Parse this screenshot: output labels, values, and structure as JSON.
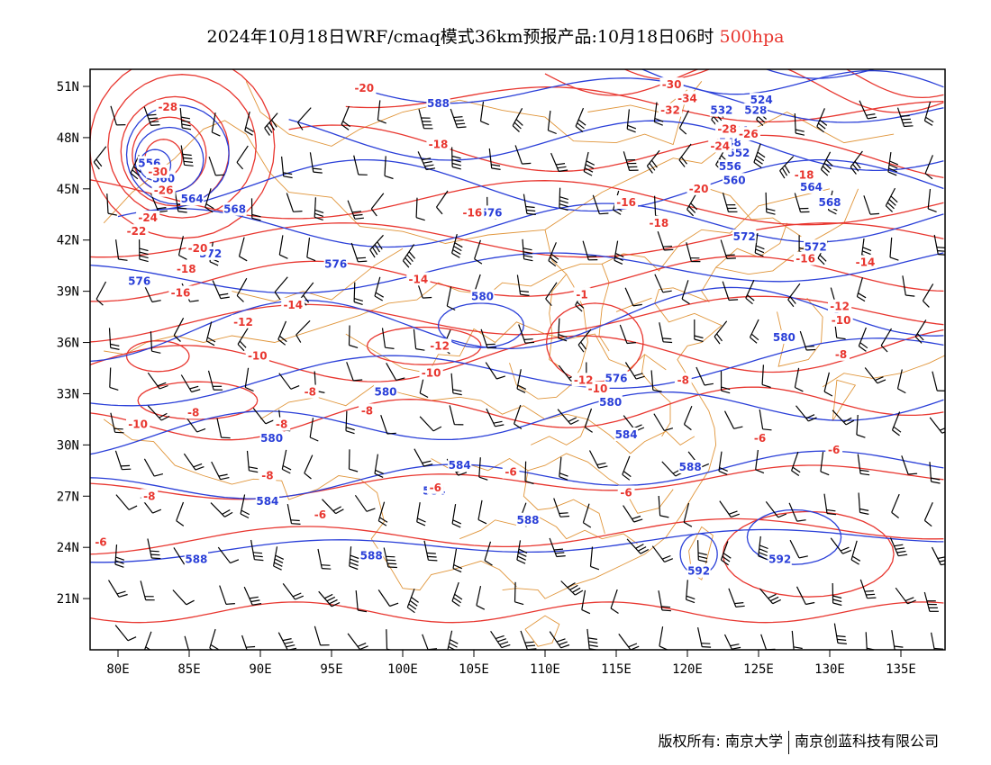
{
  "title": {
    "main": "2024年10月18日WRF/cmaq模式36km预报产品:10月18日06时",
    "level": "500hpa"
  },
  "colors": {
    "height_contour": "#2a3fd8",
    "temperature_contour": "#e8362f",
    "coastline_border": "#e0953a",
    "wind_barb": "#000000",
    "level_highlight": "#e8362f"
  },
  "axes": {
    "x_ticks": [
      "80E",
      "85E",
      "90E",
      "95E",
      "100E",
      "105E",
      "110E",
      "115E",
      "120E",
      "125E",
      "130E",
      "135E"
    ],
    "y_ticks": [
      "51N",
      "48N",
      "45N",
      "42N",
      "39N",
      "36N",
      "33N",
      "30N",
      "27N",
      "24N",
      "21N"
    ]
  },
  "contour_labels": {
    "height": [
      {
        "text": "588",
        "lon": 102.5,
        "lat": 50.0
      },
      {
        "text": "556",
        "lon": 82.2,
        "lat": 46.5
      },
      {
        "text": "560",
        "lon": 83.2,
        "lat": 45.6
      },
      {
        "text": "564",
        "lon": 85.2,
        "lat": 44.4
      },
      {
        "text": "568",
        "lon": 88.2,
        "lat": 43.8
      },
      {
        "text": "572",
        "lon": 86.5,
        "lat": 41.2
      },
      {
        "text": "576",
        "lon": 95.3,
        "lat": 40.6
      },
      {
        "text": "576",
        "lon": 81.5,
        "lat": 39.6
      },
      {
        "text": "576",
        "lon": 106.2,
        "lat": 43.6
      },
      {
        "text": "580",
        "lon": 105.6,
        "lat": 38.7
      },
      {
        "text": "580",
        "lon": 98.8,
        "lat": 33.1
      },
      {
        "text": "580",
        "lon": 90.8,
        "lat": 30.4
      },
      {
        "text": "576",
        "lon": 115.0,
        "lat": 33.9
      },
      {
        "text": "580",
        "lon": 114.6,
        "lat": 32.5
      },
      {
        "text": "584",
        "lon": 115.7,
        "lat": 30.6
      },
      {
        "text": "584",
        "lon": 104.0,
        "lat": 28.8
      },
      {
        "text": "584",
        "lon": 102.2,
        "lat": 27.3
      },
      {
        "text": "584",
        "lon": 90.5,
        "lat": 26.7
      },
      {
        "text": "588",
        "lon": 108.8,
        "lat": 25.6
      },
      {
        "text": "588",
        "lon": 97.8,
        "lat": 23.5
      },
      {
        "text": "588",
        "lon": 85.5,
        "lat": 23.3
      },
      {
        "text": "588",
        "lon": 120.2,
        "lat": 28.7
      },
      {
        "text": "592",
        "lon": 120.8,
        "lat": 22.6
      },
      {
        "text": "592",
        "lon": 126.5,
        "lat": 23.3
      },
      {
        "text": "580",
        "lon": 126.8,
        "lat": 36.3
      },
      {
        "text": "572",
        "lon": 124.0,
        "lat": 42.2
      },
      {
        "text": "572",
        "lon": 129.0,
        "lat": 41.6
      },
      {
        "text": "568",
        "lon": 130.0,
        "lat": 44.2
      },
      {
        "text": "564",
        "lon": 128.7,
        "lat": 45.1
      },
      {
        "text": "560",
        "lon": 123.3,
        "lat": 45.5
      },
      {
        "text": "556",
        "lon": 123.0,
        "lat": 46.3
      },
      {
        "text": "552",
        "lon": 123.6,
        "lat": 47.1
      },
      {
        "text": "548",
        "lon": 123.0,
        "lat": 47.7
      },
      {
        "text": "544",
        "lon": 123.5,
        "lat": 48.4
      },
      {
        "text": "532",
        "lon": 122.4,
        "lat": 49.6
      },
      {
        "text": "528",
        "lon": 124.8,
        "lat": 49.6
      },
      {
        "text": "524",
        "lon": 125.2,
        "lat": 50.2
      }
    ],
    "temperature": [
      {
        "text": "-28",
        "lon": 83.5,
        "lat": 49.8
      },
      {
        "text": "-30",
        "lon": 82.8,
        "lat": 46.0
      },
      {
        "text": "-26",
        "lon": 83.2,
        "lat": 44.9
      },
      {
        "text": "-24",
        "lon": 82.1,
        "lat": 43.3
      },
      {
        "text": "-22",
        "lon": 81.3,
        "lat": 42.5
      },
      {
        "text": "-20",
        "lon": 85.6,
        "lat": 41.5
      },
      {
        "text": "-18",
        "lon": 84.8,
        "lat": 40.3
      },
      {
        "text": "-16",
        "lon": 84.4,
        "lat": 38.9
      },
      {
        "text": "-14",
        "lon": 92.3,
        "lat": 38.2
      },
      {
        "text": "-12",
        "lon": 88.8,
        "lat": 37.2
      },
      {
        "text": "-10",
        "lon": 89.8,
        "lat": 35.2
      },
      {
        "text": "-8",
        "lon": 93.5,
        "lat": 33.1
      },
      {
        "text": "-8",
        "lon": 85.3,
        "lat": 31.9
      },
      {
        "text": "-10",
        "lon": 81.4,
        "lat": 31.2
      },
      {
        "text": "-8",
        "lon": 91.5,
        "lat": 31.2
      },
      {
        "text": "-8",
        "lon": 90.5,
        "lat": 28.2
      },
      {
        "text": "-8",
        "lon": 97.5,
        "lat": 32.0
      },
      {
        "text": "-8",
        "lon": 82.2,
        "lat": 27.0
      },
      {
        "text": "-6",
        "lon": 94.2,
        "lat": 25.9
      },
      {
        "text": "-6",
        "lon": 78.8,
        "lat": 24.3
      },
      {
        "text": "-6",
        "lon": 102.3,
        "lat": 27.5
      },
      {
        "text": "-6",
        "lon": 107.6,
        "lat": 28.4
      },
      {
        "text": "-6",
        "lon": 115.7,
        "lat": 27.2
      },
      {
        "text": "-6",
        "lon": 125.1,
        "lat": 30.4
      },
      {
        "text": "-6",
        "lon": 130.3,
        "lat": 29.7
      },
      {
        "text": "-8",
        "lon": 119.7,
        "lat": 33.8
      },
      {
        "text": "-8",
        "lon": 130.8,
        "lat": 35.3
      },
      {
        "text": "-10",
        "lon": 130.8,
        "lat": 37.3
      },
      {
        "text": "-10",
        "lon": 113.7,
        "lat": 33.3
      },
      {
        "text": "-10",
        "lon": 102.0,
        "lat": 34.2
      },
      {
        "text": "-12",
        "lon": 112.7,
        "lat": 33.8
      },
      {
        "text": "-12",
        "lon": 102.6,
        "lat": 35.8
      },
      {
        "text": "-12",
        "lon": 130.7,
        "lat": 38.1
      },
      {
        "text": "-14",
        "lon": 101.1,
        "lat": 39.7
      },
      {
        "text": "-14",
        "lon": 132.5,
        "lat": 40.7
      },
      {
        "text": "-16",
        "lon": 104.9,
        "lat": 43.6
      },
      {
        "text": "-16",
        "lon": 128.3,
        "lat": 40.9
      },
      {
        "text": "-18",
        "lon": 118.0,
        "lat": 43.0
      },
      {
        "text": "-16",
        "lon": 115.7,
        "lat": 44.2
      },
      {
        "text": "-18",
        "lon": 102.5,
        "lat": 47.6
      },
      {
        "text": "-18",
        "lon": 128.2,
        "lat": 45.8
      },
      {
        "text": "-20",
        "lon": 120.8,
        "lat": 45.0
      },
      {
        "text": "-20",
        "lon": 97.3,
        "lat": 50.9
      },
      {
        "text": "-24",
        "lon": 122.3,
        "lat": 47.5
      },
      {
        "text": "-26",
        "lon": 124.3,
        "lat": 48.2
      },
      {
        "text": "-28",
        "lon": 122.8,
        "lat": 48.5
      },
      {
        "text": "-32",
        "lon": 118.8,
        "lat": 49.6
      },
      {
        "text": "-34",
        "lon": 120.0,
        "lat": 50.3
      },
      {
        "text": "-30",
        "lon": 118.9,
        "lat": 51.1
      },
      {
        "text": "-1",
        "lon": 112.6,
        "lat": 38.8
      }
    ]
  },
  "footer": {
    "copyright_label": "版权所有: 南京大学",
    "company": "南京创蓝科技有限公司"
  }
}
